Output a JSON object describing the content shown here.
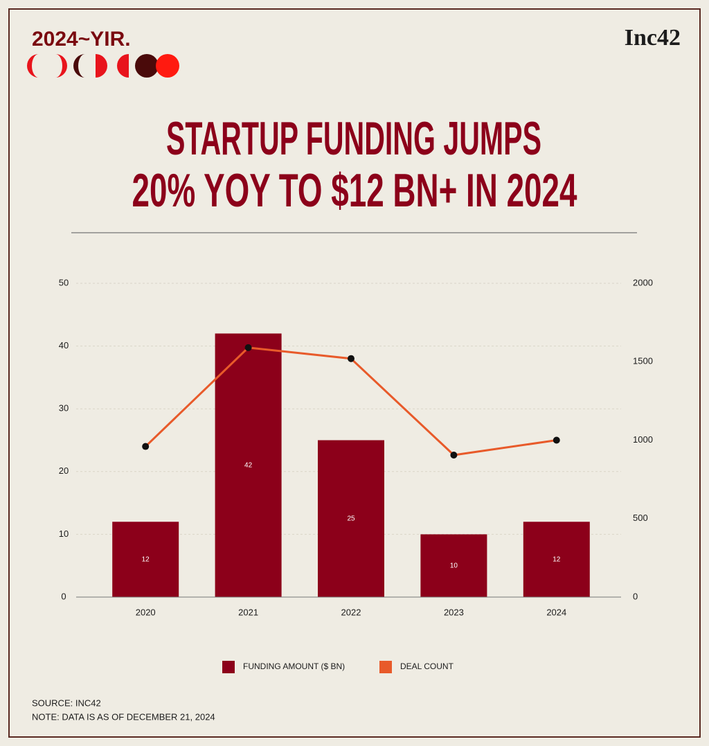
{
  "chart_data": {
    "type": "bar",
    "brand": "2024~YIR.",
    "logo": "Inc42",
    "title": [
      "STARTUP FUNDING JUMPS",
      "20% YOY TO $12 BN+ IN 2024"
    ],
    "categories": [
      "2020",
      "2021",
      "2022",
      "2023",
      "2024"
    ],
    "series": [
      {
        "name": "FUNDING AMOUNT ($ BN)",
        "type": "bar",
        "color": "#8c001a",
        "values": [
          12,
          42,
          25,
          10,
          12
        ]
      },
      {
        "name": "DEAL COUNT",
        "type": "line",
        "axis": "y2",
        "color": "#e85a2a",
        "marker_color": "#111111",
        "values": [
          960,
          1590,
          1520,
          905,
          1000
        ]
      }
    ],
    "ylim": [
      0,
      50
    ],
    "yticks": [
      0,
      10,
      20,
      30,
      40,
      50
    ],
    "y2lim": [
      0,
      2000
    ],
    "y2ticks": [
      0,
      500,
      1000,
      1500,
      2000
    ],
    "grid": true,
    "legend": "bottom",
    "source": "SOURCE: INC42",
    "note": "NOTE: DATA IS AS OF DECEMBER 21, 2024"
  }
}
